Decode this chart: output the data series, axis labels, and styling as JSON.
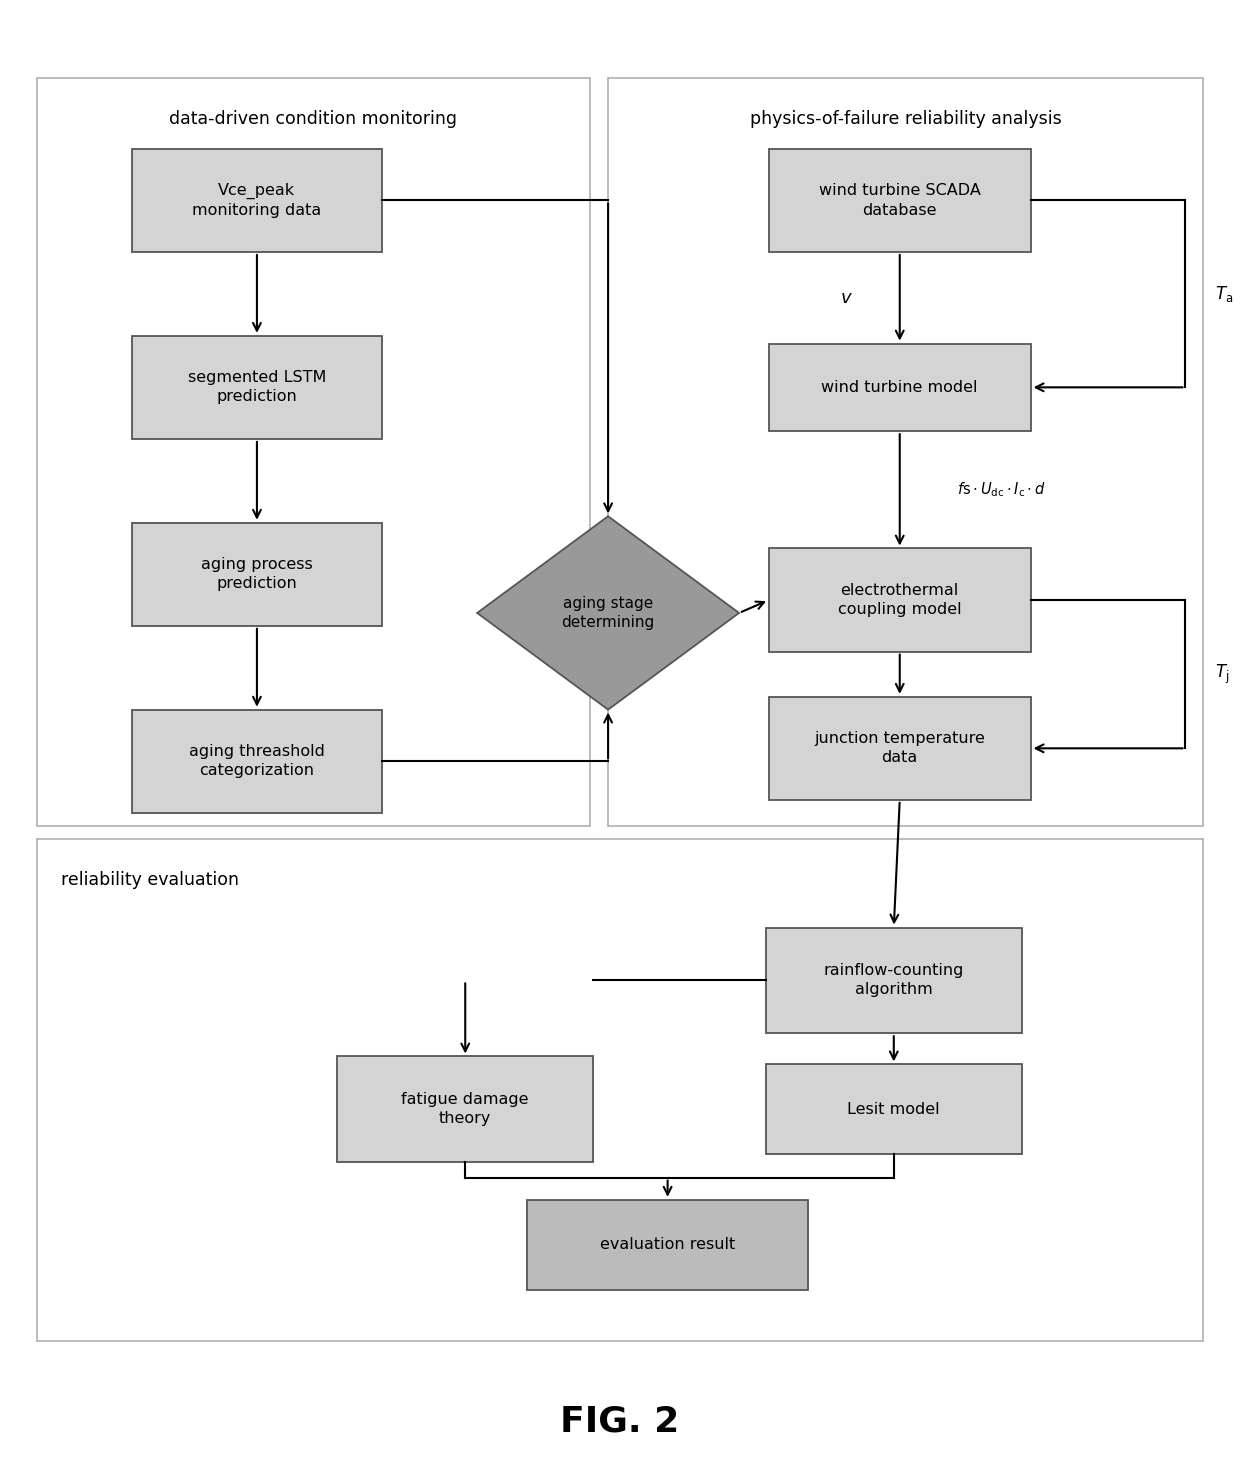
{
  "fig_width": 12.4,
  "fig_height": 14.65,
  "dpi": 100,
  "bg_color": "#ffffff",
  "box_fill": "#d4d4d4",
  "box_edge": "#555555",
  "diamond_fill": "#999999",
  "eval_fill": "#bbbbbb",
  "section_edge": "#aaaaaa",
  "title_text": "FIG. 2",
  "sec1_label": "data-driven condition monitoring",
  "sec2_label": "physics-of-failure reliability analysis",
  "sec3_label": "reliability evaluation"
}
